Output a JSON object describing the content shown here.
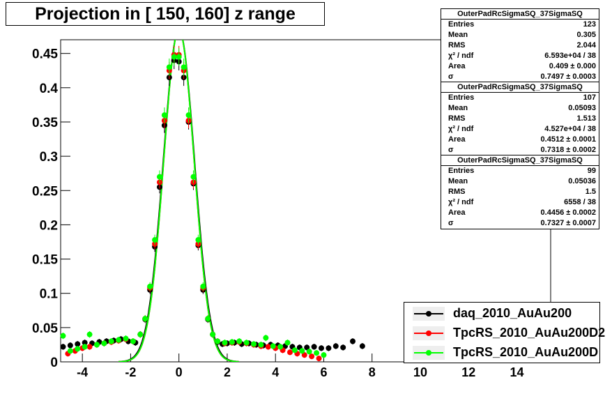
{
  "title": "Projection in [ 150, 160] z range",
  "stats_boxes": [
    {
      "name": "OuterPadRcSigmaSQ_37SigmaSQ",
      "rows": [
        [
          "Entries",
          "123"
        ],
        [
          "Mean",
          "0.305"
        ],
        [
          "RMS",
          "2.044"
        ],
        [
          "χ² / ndf",
          "6.593e+04 / 38"
        ],
        [
          "Area",
          "0.409 ± 0.000"
        ],
        [
          "σ",
          "0.7497 ± 0.0003"
        ]
      ]
    },
    {
      "name": "OuterPadRcSigmaSQ_37SigmaSQ",
      "rows": [
        [
          "Entries",
          "107"
        ],
        [
          "Mean",
          "0.05093"
        ],
        [
          "RMS",
          "1.513"
        ],
        [
          "χ² / ndf",
          "4.527e+04 / 38"
        ],
        [
          "Area",
          "0.4512 ± 0.0001"
        ],
        [
          "σ",
          "0.7318 ± 0.0002"
        ]
      ]
    },
    {
      "name": "OuterPadRcSigmaSQ_37SigmaSQ",
      "rows": [
        [
          "Entries",
          "99"
        ],
        [
          "Mean",
          "0.05036"
        ],
        [
          "RMS",
          "1.5"
        ],
        [
          "χ² / ndf",
          "6558 / 38"
        ],
        [
          "Area",
          "0.4456 ± 0.0002"
        ],
        [
          "σ",
          "0.7327 ± 0.0007"
        ]
      ]
    }
  ],
  "legend": [
    {
      "label": "daq_2010_AuAu200",
      "color": "#000000"
    },
    {
      "label": "TpcRS_2010_AuAu200D2",
      "color": "#ff0000"
    },
    {
      "label": "TpcRS_2010_AuAu200D",
      "color": "#00ff00"
    }
  ],
  "chart_data": {
    "type": "scatter",
    "xlim": [
      -4.9,
      15.4
    ],
    "ylim": [
      0,
      0.47
    ],
    "x_ticks": [
      -4,
      -2,
      0,
      2,
      4,
      6,
      8,
      10,
      12,
      14
    ],
    "y_ticks": [
      0,
      0.05,
      0.1,
      0.15,
      0.2,
      0.25,
      0.3,
      0.35,
      0.4,
      0.45
    ],
    "y_tick_labels": [
      "0",
      "0.05",
      "0.1",
      "0.15",
      "0.2",
      "0.25",
      "0.3",
      "0.35",
      "0.4",
      "0.45"
    ],
    "grid": true,
    "series": [
      {
        "name": "daq_2010_AuAu200",
        "color": "#000000",
        "x": [
          -4.8,
          -4.5,
          -4.2,
          -3.9,
          -3.6,
          -3.3,
          -3.0,
          -2.7,
          -2.4,
          -2.1,
          -1.8,
          -1.6,
          -1.4,
          -1.2,
          -1.0,
          -0.8,
          -0.6,
          -0.4,
          -0.2,
          0.0,
          0.2,
          0.4,
          0.6,
          0.8,
          1.0,
          1.2,
          1.4,
          1.6,
          1.8,
          2.0,
          2.3,
          2.6,
          2.9,
          3.2,
          3.5,
          3.8,
          4.1,
          4.4,
          4.7,
          5.0,
          5.3,
          5.6,
          5.9,
          6.2,
          6.5,
          6.8,
          7.2,
          7.6
        ],
        "y": [
          0.022,
          0.024,
          0.026,
          0.028,
          0.027,
          0.029,
          0.03,
          0.031,
          0.033,
          0.03,
          0.028,
          0.04,
          0.062,
          0.105,
          0.168,
          0.255,
          0.345,
          0.415,
          0.44,
          0.438,
          0.415,
          0.35,
          0.26,
          0.17,
          0.105,
          0.062,
          0.04,
          0.029,
          0.026,
          0.027,
          0.028,
          0.026,
          0.027,
          0.025,
          0.024,
          0.025,
          0.024,
          0.023,
          0.022,
          0.021,
          0.021,
          0.022,
          0.02,
          0.02,
          0.023,
          0.021,
          0.03,
          0.023
        ],
        "fit_sigma": 0.7497,
        "fit_mean": 0.0
      },
      {
        "name": "TpcRS_2010_AuAu200D2",
        "color": "#ff0000",
        "x": [
          -4.6,
          -4.3,
          -4.0,
          -3.7,
          -3.4,
          -3.1,
          -2.8,
          -2.5,
          -2.2,
          -1.9,
          -1.6,
          -1.4,
          -1.2,
          -1.0,
          -0.8,
          -0.6,
          -0.4,
          -0.2,
          0.0,
          0.2,
          0.4,
          0.6,
          0.8,
          1.0,
          1.2,
          1.4,
          1.6,
          1.9,
          2.2,
          2.5,
          2.8,
          3.1,
          3.4,
          3.7,
          4.0,
          4.3,
          4.6,
          4.9,
          5.2,
          5.5,
          5.8
        ],
        "y": [
          0.012,
          0.016,
          0.02,
          0.022,
          0.025,
          0.027,
          0.029,
          0.031,
          0.033,
          0.03,
          0.04,
          0.063,
          0.108,
          0.172,
          0.262,
          0.352,
          0.425,
          0.448,
          0.448,
          0.425,
          0.352,
          0.262,
          0.172,
          0.108,
          0.063,
          0.04,
          0.03,
          0.027,
          0.028,
          0.029,
          0.027,
          0.025,
          0.023,
          0.022,
          0.02,
          0.017,
          0.014,
          0.012,
          0.01,
          0.008,
          0.005
        ],
        "fit_sigma": 0.7318,
        "fit_mean": 0.0
      },
      {
        "name": "TpcRS_2010_AuAu200D",
        "color": "#00ff00",
        "x": [
          -4.8,
          -4.5,
          -4.2,
          -3.9,
          -3.7,
          -3.4,
          -3.1,
          -2.8,
          -2.5,
          -2.2,
          -1.9,
          -1.6,
          -1.4,
          -1.2,
          -1.0,
          -0.8,
          -0.6,
          -0.4,
          -0.2,
          0.0,
          0.2,
          0.4,
          0.6,
          0.8,
          1.0,
          1.2,
          1.4,
          1.6,
          1.9,
          2.2,
          2.5,
          2.8,
          3.1,
          3.4,
          3.6,
          3.9,
          4.2,
          4.5,
          4.8,
          5.1,
          5.4,
          5.7,
          6.0
        ],
        "y": [
          0.038,
          0.016,
          0.019,
          0.022,
          0.04,
          0.025,
          0.027,
          0.03,
          0.032,
          0.034,
          0.03,
          0.04,
          0.063,
          0.11,
          0.178,
          0.27,
          0.36,
          0.43,
          0.445,
          0.445,
          0.43,
          0.36,
          0.27,
          0.178,
          0.11,
          0.063,
          0.04,
          0.03,
          0.028,
          0.029,
          0.03,
          0.028,
          0.026,
          0.025,
          0.035,
          0.023,
          0.022,
          0.028,
          0.017,
          0.016,
          0.015,
          0.013,
          0.01
        ],
        "fit_sigma": 0.7327,
        "fit_mean": 0.0
      }
    ]
  }
}
